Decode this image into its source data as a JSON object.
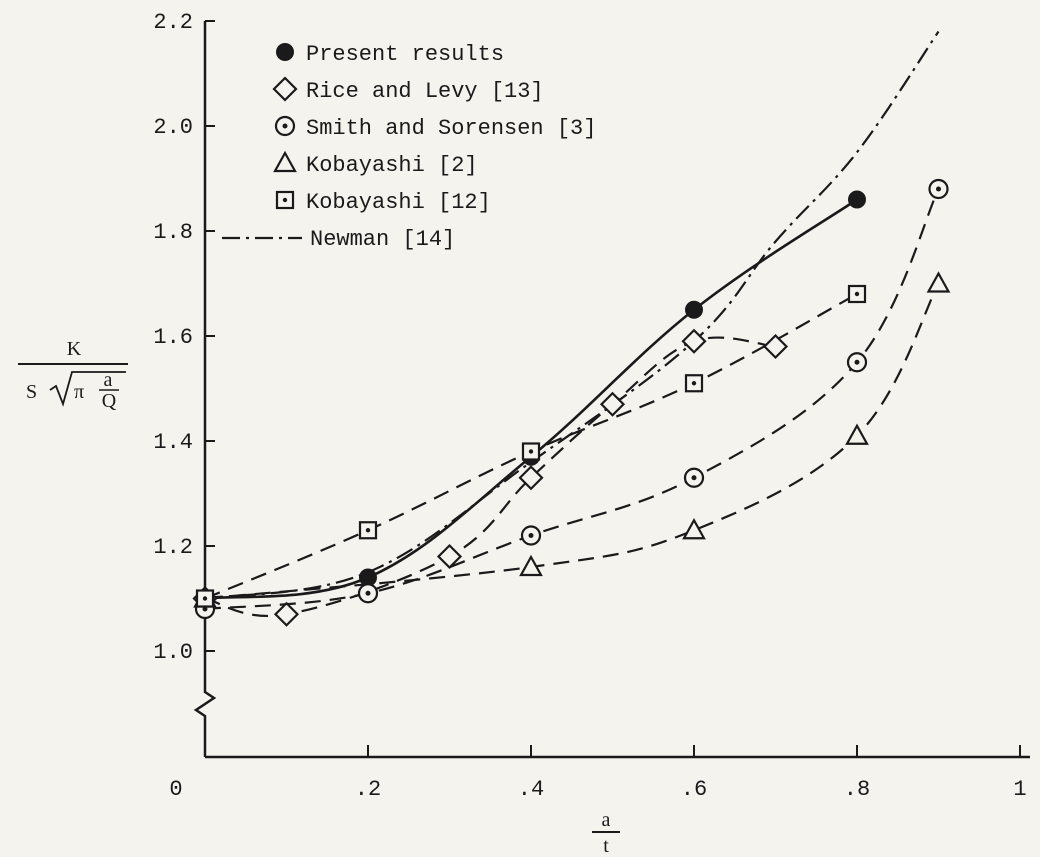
{
  "chart_data": {
    "type": "line",
    "xlim": [
      0,
      1
    ],
    "ylim": [
      0.8,
      2.2
    ],
    "y_axis_break": true,
    "x_ticks": [
      {
        "value": 0,
        "label": "0"
      },
      {
        "value": 0.2,
        "label": ".2"
      },
      {
        "value": 0.4,
        "label": ".4"
      },
      {
        "value": 0.6,
        "label": ".6"
      },
      {
        "value": 0.8,
        "label": ".8"
      },
      {
        "value": 1.0,
        "label": "1"
      }
    ],
    "y_ticks": [
      {
        "value": 1.0,
        "label": "1.0"
      },
      {
        "value": 1.2,
        "label": "1.2"
      },
      {
        "value": 1.4,
        "label": "1.4"
      },
      {
        "value": 1.6,
        "label": "1.6"
      },
      {
        "value": 1.8,
        "label": "1.8"
      },
      {
        "value": 2.0,
        "label": "2.0"
      },
      {
        "value": 2.2,
        "label": "2.2"
      }
    ],
    "xlabel": {
      "num": "a",
      "den": "t"
    },
    "ylabel": {
      "num": "K",
      "den_prefix": "S",
      "root": "π",
      "frac_num": "a",
      "frac_den": "Q"
    },
    "legend_position": "top-left",
    "series": [
      {
        "name": "Present results",
        "marker": "filled-circle",
        "line": "solid",
        "x": [
          0,
          0.2,
          0.4,
          0.6,
          0.8
        ],
        "y": [
          1.1,
          1.14,
          1.37,
          1.65,
          1.86
        ]
      },
      {
        "name": "Rice and Levy [13]",
        "marker": "diamond",
        "line": "dashed",
        "x": [
          0,
          0.1,
          0.3,
          0.4,
          0.5,
          0.6,
          0.7
        ],
        "y": [
          1.1,
          1.07,
          1.18,
          1.33,
          1.47,
          1.59,
          1.58
        ]
      },
      {
        "name": "Smith and Sorensen [3]",
        "marker": "circle-dot",
        "line": "dashed",
        "x": [
          0,
          0.2,
          0.4,
          0.6,
          0.8,
          0.9
        ],
        "y": [
          1.08,
          1.11,
          1.22,
          1.33,
          1.55,
          1.88
        ]
      },
      {
        "name": "Kobayashi [2]",
        "marker": "triangle",
        "line": "dashed",
        "x": [
          0,
          0.4,
          0.6,
          0.8,
          0.9
        ],
        "y": [
          1.1,
          1.16,
          1.23,
          1.41,
          1.7
        ]
      },
      {
        "name": "Kobayashi [12]",
        "marker": "square-dot",
        "line": "dashed",
        "x": [
          0,
          0.2,
          0.4,
          0.6,
          0.8
        ],
        "y": [
          1.1,
          1.23,
          1.38,
          1.51,
          1.68
        ]
      },
      {
        "name": "Newman [14]",
        "marker": "none",
        "line": "dash-dot",
        "x": [
          0,
          0.2,
          0.4,
          0.6,
          0.7,
          0.8,
          0.9
        ],
        "y": [
          1.1,
          1.15,
          1.36,
          1.59,
          1.78,
          1.95,
          2.18
        ]
      }
    ]
  }
}
